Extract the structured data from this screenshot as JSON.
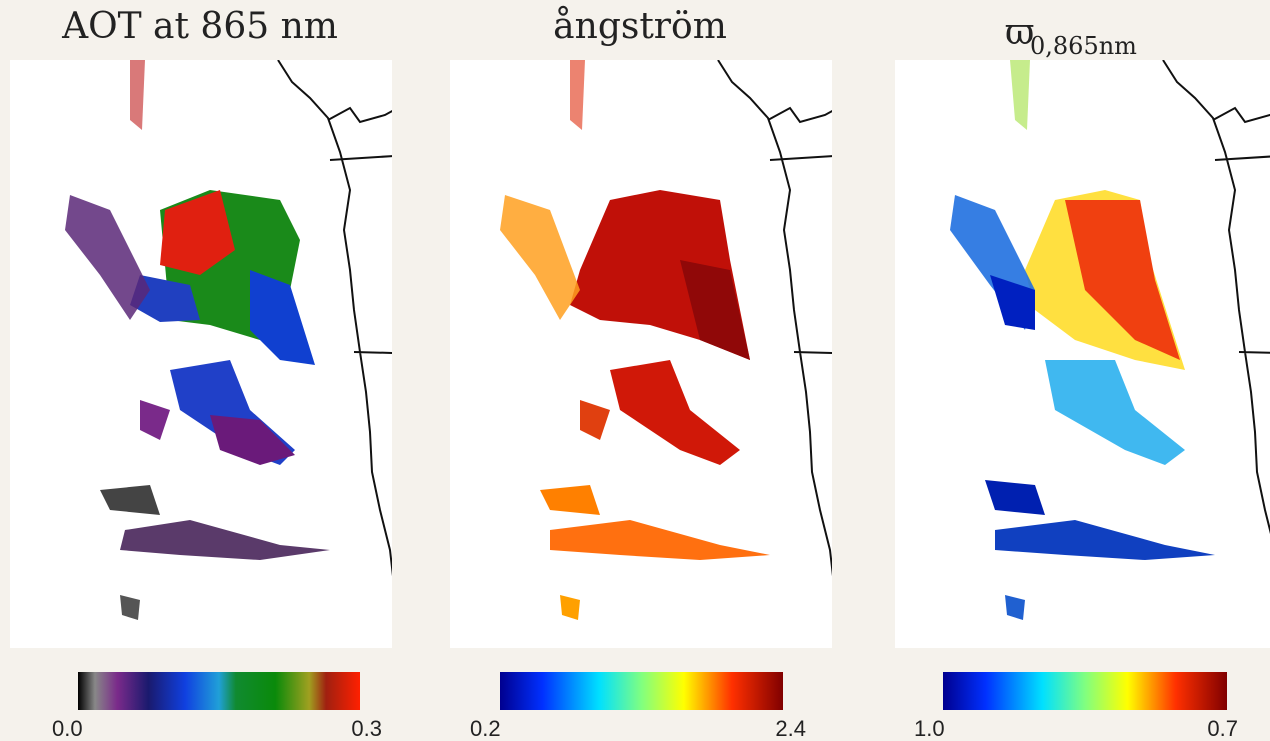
{
  "panels": [
    {
      "title": "AOT at 865 nm",
      "colorbar": {
        "left_label": "0.0",
        "right_label": "0.3"
      }
    },
    {
      "title": "ångström",
      "colorbar": {
        "left_label": "0.2",
        "right_label": "2.4"
      }
    },
    {
      "title": "ϖ",
      "title_subscript": "0,865nm",
      "colorbar": {
        "left_label": "1.0",
        "right_label": "0.7"
      }
    }
  ]
}
